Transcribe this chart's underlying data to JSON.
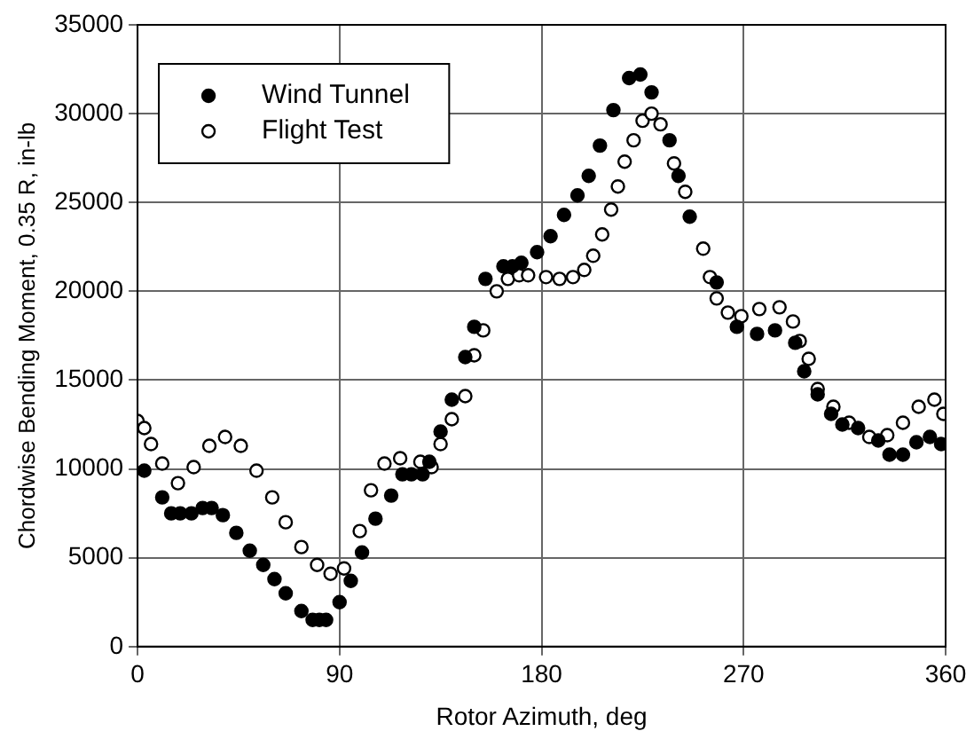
{
  "chart_data": {
    "type": "scatter",
    "xlabel": "Rotor Azimuth, deg",
    "ylabel": "Chordwise Bending Moment, 0.35 R, in-lb",
    "xlim": [
      0,
      360
    ],
    "xticks": [
      0,
      90,
      180,
      270,
      360
    ],
    "ylim": [
      0,
      35000
    ],
    "yticks": [
      0,
      5000,
      10000,
      15000,
      20000,
      25000,
      30000,
      35000
    ],
    "grid": true,
    "legend": "top left",
    "series": [
      {
        "name": "Wind Tunnel",
        "color": "#000000",
        "marker": "circle",
        "x": [
          3,
          11,
          15,
          19,
          24,
          29,
          33,
          38,
          44,
          50,
          56,
          61,
          66,
          73,
          78,
          81,
          84,
          90,
          95,
          100,
          106,
          113,
          118,
          122,
          127,
          130,
          135,
          140,
          146,
          150,
          155,
          163,
          167,
          171,
          178,
          184,
          190,
          196,
          201,
          206,
          212,
          219,
          224,
          229,
          237,
          241,
          246,
          258,
          267,
          276,
          284,
          293,
          297,
          303,
          309,
          314,
          321,
          330,
          335,
          341,
          347,
          353,
          358
        ],
        "values": [
          9900,
          8400,
          7500,
          7500,
          7500,
          7800,
          7800,
          7400,
          6400,
          5400,
          4600,
          3800,
          3000,
          2000,
          1500,
          1500,
          1500,
          2500,
          3700,
          5300,
          7200,
          8500,
          9700,
          9700,
          9700,
          10400,
          12100,
          13900,
          16300,
          18000,
          20700,
          21400,
          21400,
          21600,
          22200,
          23100,
          24300,
          25400,
          26500,
          28200,
          30200,
          32000,
          32200,
          31200,
          28500,
          26500,
          24200,
          20500,
          18000,
          17600,
          17800,
          17100,
          15500,
          14200,
          13100,
          12500,
          12300,
          11600,
          10800,
          10800,
          11500,
          11800,
          11400
        ]
      },
      {
        "name": "Flight Test",
        "color": "#000000",
        "marker": "circle",
        "x": [
          0,
          3,
          6,
          11,
          18,
          25,
          32,
          39,
          46,
          53,
          60,
          66,
          73,
          80,
          86,
          92,
          99,
          104,
          110,
          117,
          126,
          131,
          135,
          140,
          146,
          150,
          154,
          160,
          165,
          170,
          174,
          182,
          188,
          194,
          199,
          203,
          207,
          211,
          214,
          217,
          221,
          225,
          229,
          233,
          239,
          244,
          252,
          255,
          258,
          263,
          269,
          277,
          286,
          292,
          295,
          299,
          303,
          310,
          317,
          326,
          334,
          341,
          348,
          355,
          359
        ],
        "values": [
          12700,
          12300,
          11400,
          10300,
          9200,
          10100,
          11300,
          11800,
          11300,
          9900,
          8400,
          7000,
          5600,
          4600,
          4100,
          4400,
          6500,
          8800,
          10300,
          10600,
          10400,
          10100,
          11400,
          12800,
          14100,
          16400,
          17800,
          20000,
          20700,
          20900,
          20900,
          20800,
          20700,
          20800,
          21200,
          22000,
          23200,
          24600,
          25900,
          27300,
          28500,
          29600,
          30000,
          29400,
          27200,
          25600,
          22400,
          20800,
          19600,
          18800,
          18600,
          19000,
          19100,
          18300,
          17200,
          16200,
          14500,
          13500,
          12600,
          11800,
          11900,
          12600,
          13500,
          13900,
          13100
        ]
      }
    ]
  }
}
